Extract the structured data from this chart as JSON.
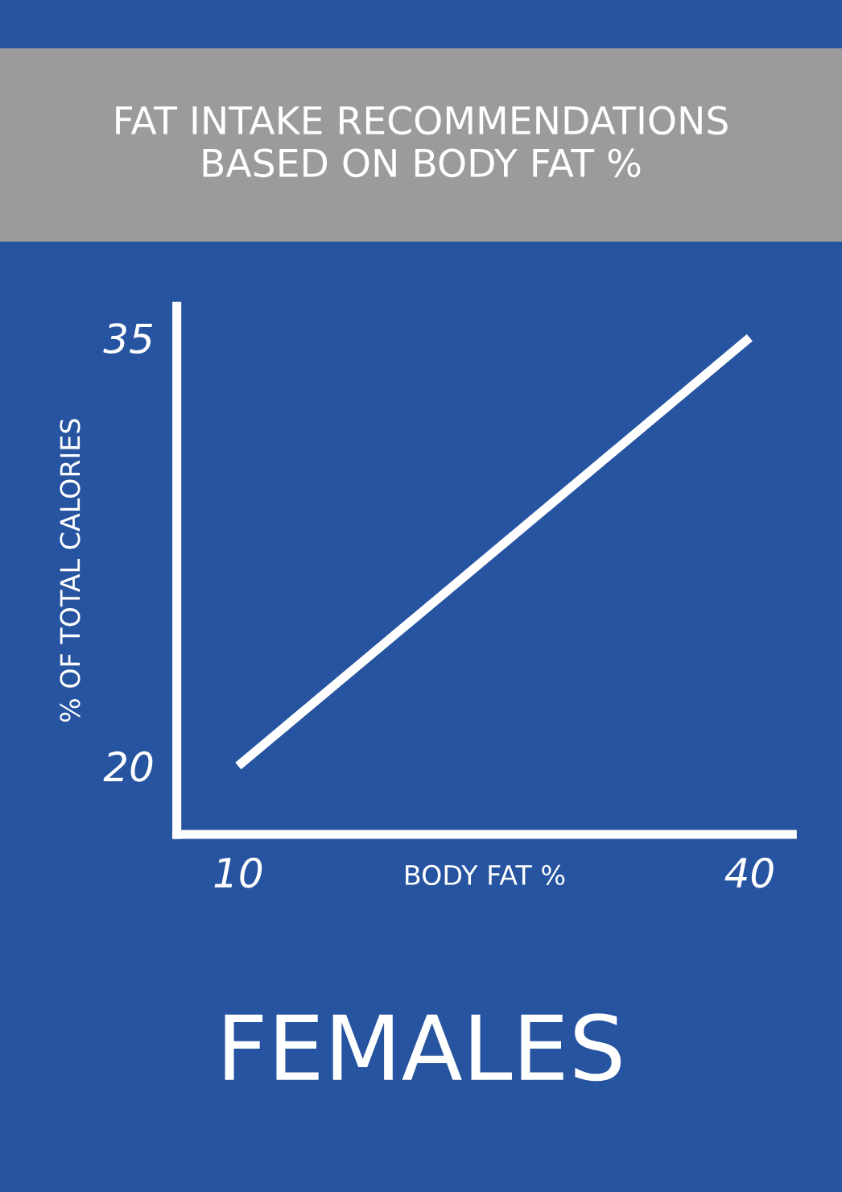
{
  "chart_data": {
    "type": "line",
    "title": "FAT INTAKE RECOMMENDATIONS\nBASED ON BODY FAT %",
    "xlabel": "BODY FAT %",
    "ylabel": "% OF TOTAL CALORIES",
    "x": [
      10,
      40
    ],
    "series": [
      {
        "color": "#ffffff",
        "values": [
          20,
          35
        ]
      }
    ],
    "xlim": [
      6.4,
      42.5
    ],
    "ylim": [
      17.6,
      36.1
    ],
    "xticks": [
      10,
      40
    ],
    "yticks": [
      20,
      35
    ],
    "annotations": [
      "FEMALES"
    ],
    "grid": false,
    "legend": false,
    "marker": "none",
    "line_style": "solid"
  }
}
